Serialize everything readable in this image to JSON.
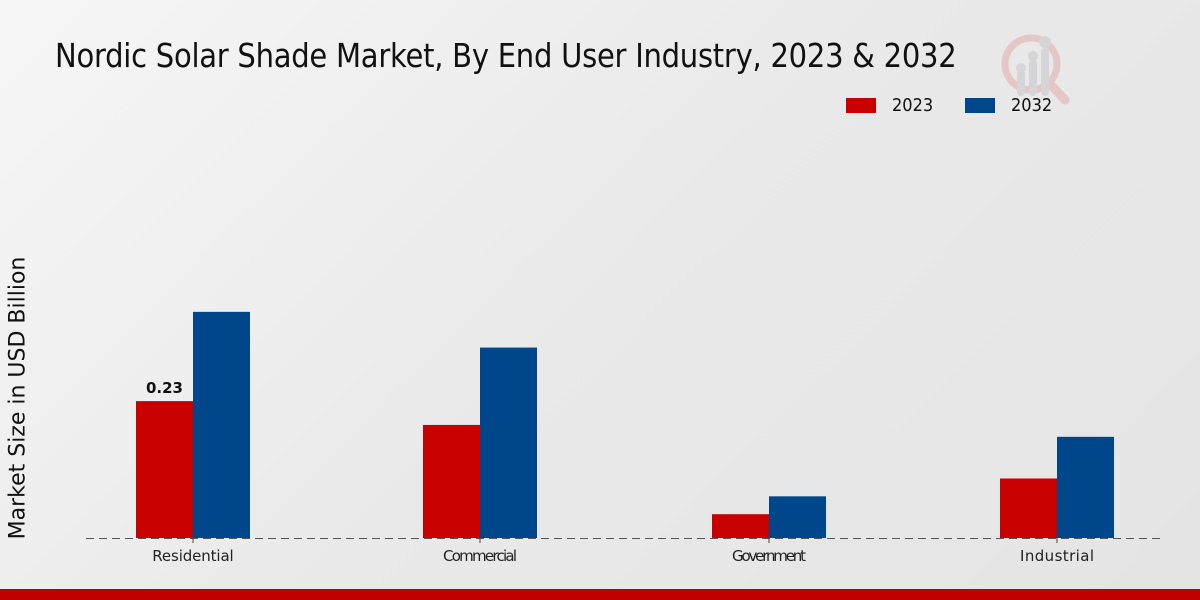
{
  "title": "Nordic Solar Shade Market, By End User Industry, 2023 & 2032",
  "colors": {
    "2023": "#c80000",
    "2032": "#00468b",
    "footer": "#c00000"
  },
  "logo_icon": "magnifier-bar-chart-icon",
  "chart_data": {
    "type": "bar",
    "title": "Nordic Solar Shade Market, By End User Industry, 2023 & 2032",
    "xlabel": "",
    "ylabel": "Market Size in USD Billion",
    "categories": [
      "Residential",
      "Commercial",
      "Government",
      "Industrial"
    ],
    "series": [
      {
        "name": "2023",
        "color": "#c80000",
        "values": [
          0.23,
          0.19,
          0.04,
          0.1
        ]
      },
      {
        "name": "2032",
        "color": "#00468b",
        "values": [
          0.38,
          0.32,
          0.07,
          0.17
        ]
      }
    ],
    "data_labels": [
      {
        "series": "2023",
        "category": "Residential",
        "text": "0.23"
      }
    ],
    "ylim": [
      0,
      0.82
    ],
    "grid": false,
    "baseline_style": "dashed",
    "legend": {
      "position": "top-right",
      "entries": [
        "2023",
        "2032"
      ]
    }
  }
}
